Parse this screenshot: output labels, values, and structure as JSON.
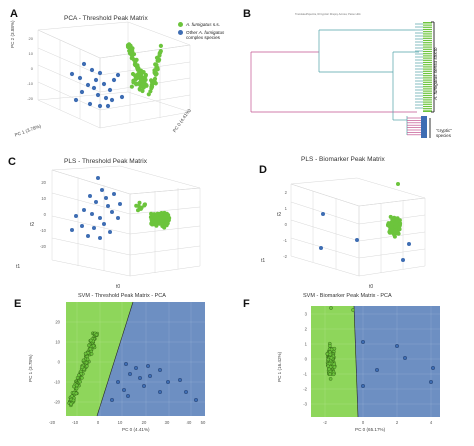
{
  "colors": {
    "green": "#6cc43c",
    "blue": "#3e6db3",
    "green_region": "#8ed65b",
    "blue_region": "#6d8fc2",
    "tree_pink": "#c2528f",
    "tree_teal": "#4fa3a8"
  },
  "panels": {
    "A": {
      "label": "A",
      "title": "PCA - Threshold Peak Matrix",
      "legend": [
        {
          "label_italic": "A. fumigatus",
          "label_rest": " s.s.",
          "color": "green"
        },
        {
          "label_italic": "",
          "label_rest": "Other ",
          "label_italic2": "A. fumigatus",
          "label_rest2": "complex species",
          "color": "blue"
        }
      ],
      "axis_pc1": "PC 1 (3.78%)",
      "axis_pc0": "PC 0 (4.41%)",
      "axis_pc2": "PC 2 (3.88%)",
      "ticks": [
        "20",
        "10",
        "0",
        "-10",
        "-20"
      ]
    },
    "B": {
      "label": "B",
      "header": "TranslatedSpectra, Rrinyptial: Rrapsy Acrosa; Parse Hitlx",
      "clade1_label": "A. fumigatus sensu stricto",
      "clade2_label_1": "\"cryptic\"",
      "clade2_label_2": "species"
    },
    "C": {
      "label": "C",
      "title": "PLS - Threshold Peak Matrix",
      "axis_t2": "t2",
      "axis_t1": "t1",
      "axis_t0": "t0",
      "ticks_left": [
        "20",
        "10",
        "0",
        "-10",
        "-20"
      ]
    },
    "D": {
      "label": "D",
      "title": "PLS - Biomarker Peak Matrix",
      "axis_t2": "t2",
      "axis_t1": "t1",
      "axis_t0": "t0",
      "ticks_left": [
        "2",
        "1",
        "0",
        "-1",
        "-2"
      ]
    },
    "E": {
      "label": "E",
      "title": "SVM - Threshold Peak Matrix - PCA",
      "xlabel": "PC 0 (4.41%)",
      "ylabel": "PC 1 (3.78%)",
      "xticks": [
        "-20",
        "-10",
        "0",
        "10",
        "20",
        "30",
        "40",
        "50"
      ],
      "yticks": [
        "20",
        "10",
        "0",
        "-10",
        "-20"
      ]
    },
    "F": {
      "label": "F",
      "title": "SVM - Biomarker Peak Matrix - PCA",
      "xlabel": "PC 0 (65.17%)",
      "ylabel": "PC 1 (16.42%)",
      "xticks": [
        "-2",
        "0",
        "2",
        "4"
      ],
      "yticks": [
        "3",
        "2",
        "1",
        "0",
        "-1",
        "-2",
        "-3"
      ]
    }
  }
}
